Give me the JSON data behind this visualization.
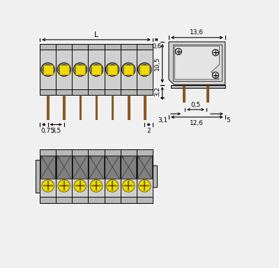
{
  "bg_color": "#f0f0f0",
  "line_color": "#000000",
  "gray_light": "#d0d0d0",
  "gray_mid": "#b8b8b8",
  "gray_dark": "#909090",
  "yellow_fill": "#f0d800",
  "brown_pin": "#9b5a1a",
  "dim_color": "#000000",
  "n_poles": 7,
  "dim_L": "L",
  "dim_06": "0,6",
  "dim_075": "0,75",
  "dim_35": "3,5",
  "dim_2": "2",
  "dim_136": "13,6",
  "dim_105": "10,5",
  "dim_32": "3,2",
  "dim_05": "0,5",
  "dim_31": "3,1",
  "dim_5": "5",
  "dim_126": "12,6"
}
